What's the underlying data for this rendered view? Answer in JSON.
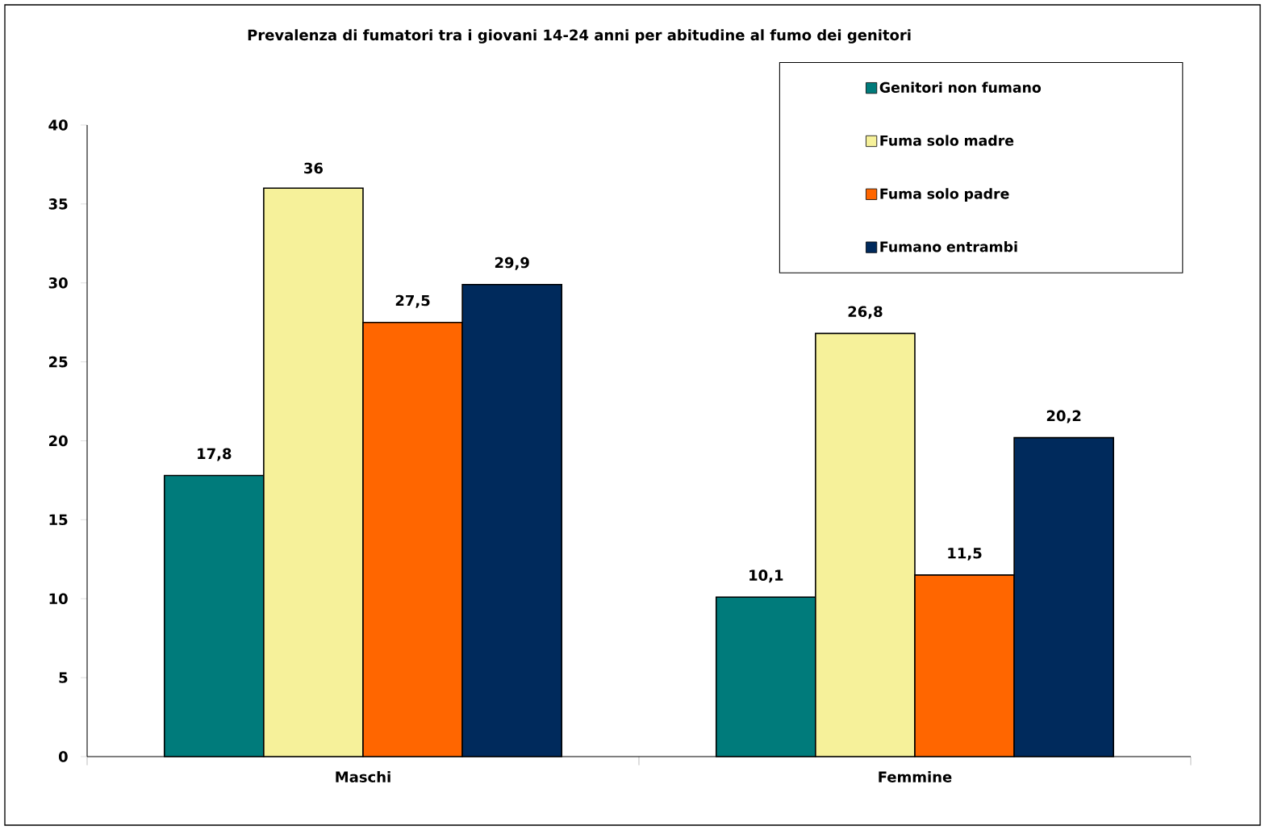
{
  "chart_data": {
    "type": "bar",
    "title": "Prevalenza di fumatori tra i giovani 14-24 anni per abitudine al fumo dei genitori",
    "categories": [
      "Maschi",
      "Femmine"
    ],
    "series": [
      {
        "name": "Genitori non fumano",
        "color": "#007b7b",
        "values": [
          17.8,
          10.1
        ],
        "value_labels": [
          "17,8",
          "10,1"
        ]
      },
      {
        "name": "Fuma solo madre",
        "color": "#f6f19a",
        "values": [
          36,
          26.8
        ],
        "value_labels": [
          "36",
          "26,8"
        ]
      },
      {
        "name": "Fuma solo padre",
        "color": "#ff6600",
        "values": [
          27.5,
          11.5
        ],
        "value_labels": [
          "27,5",
          "11,5"
        ]
      },
      {
        "name": "Fumano entrambi",
        "color": "#002a5c",
        "values": [
          29.9,
          20.2
        ],
        "value_labels": [
          "29,9",
          "20,2"
        ]
      }
    ],
    "ylim": [
      0,
      40
    ],
    "yticks": [
      0,
      5,
      10,
      15,
      20,
      25,
      30,
      35,
      40
    ],
    "grid": false,
    "legend": "top right"
  }
}
